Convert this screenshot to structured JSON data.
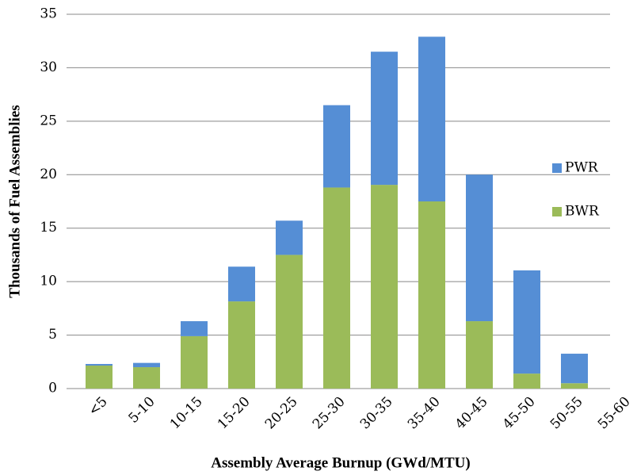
{
  "chart_data": {
    "type": "stacked-bar",
    "x_label": "Assembly Average Burnup (GWd/MTU)",
    "y_label": "Thousands of Fuel Assemblies",
    "categories": [
      "<5",
      "5-10",
      "10-15",
      "15-20",
      "20-25",
      "25-30",
      "30-35",
      "35-40",
      "40-45",
      "45-50",
      "50-55",
      "55-60"
    ],
    "series": [
      {
        "name": "BWR",
        "color": "#9bbb59",
        "values": [
          2.15,
          2.0,
          4.9,
          8.15,
          12.5,
          18.8,
          19.05,
          17.5,
          6.3,
          1.4,
          0.5,
          0
        ]
      },
      {
        "name": "PWR",
        "color": "#558ed5",
        "values": [
          0.15,
          0.4,
          1.4,
          3.25,
          3.2,
          7.7,
          12.45,
          15.4,
          13.7,
          9.65,
          2.76,
          0
        ]
      }
    ],
    "ylim": [
      0,
      35
    ],
    "yticks": [
      0,
      5,
      10,
      15,
      20,
      25,
      30,
      35
    ],
    "grid": true,
    "legend": "right"
  }
}
